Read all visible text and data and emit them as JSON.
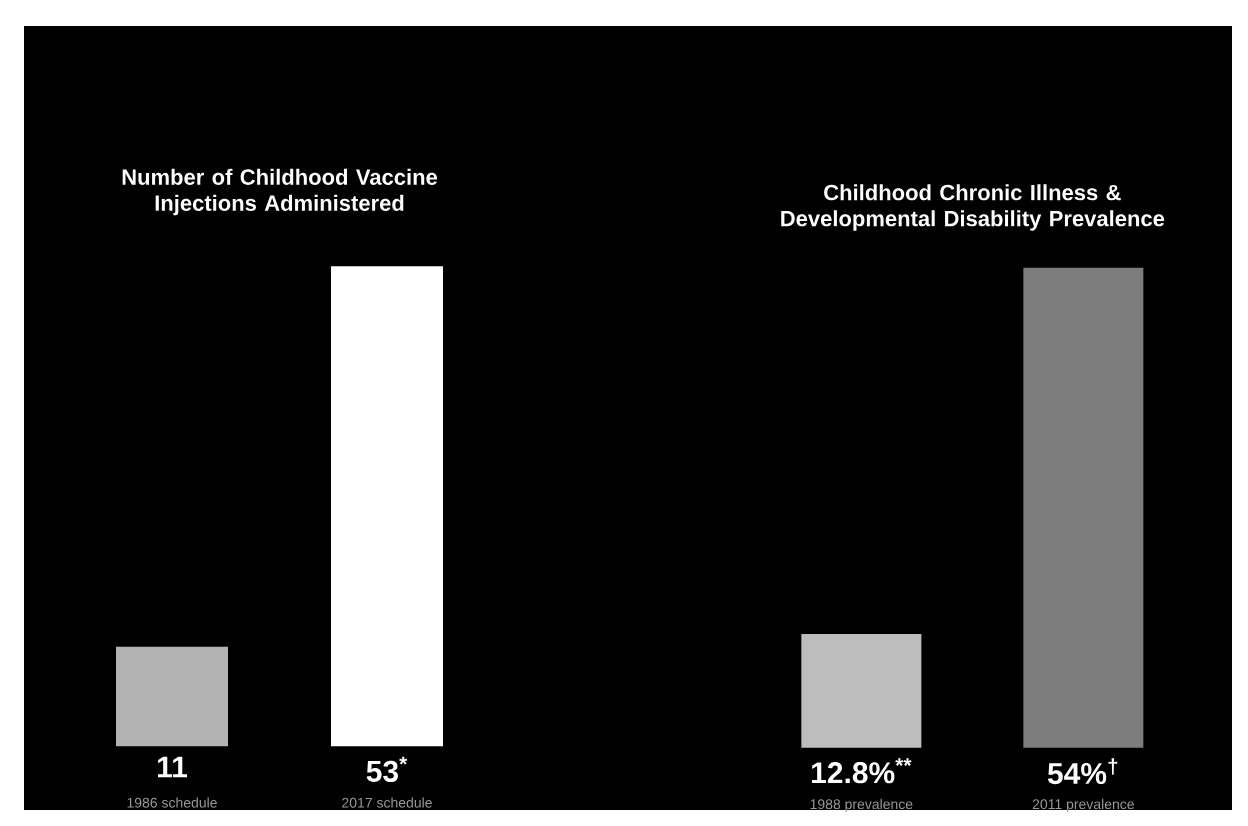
{
  "chart_data": [
    {
      "type": "bar",
      "title": "Number of Childhood Vaccine Injections Administered",
      "categories": [
        "1986 schedule",
        "2017 schedule"
      ],
      "values": [
        11,
        53
      ],
      "colors": [
        "#b3b3b3",
        "#ffffff"
      ],
      "value_labels": [
        "11",
        "53$^{*}$"
      ]
    },
    {
      "type": "bar",
      "title": "Childhood Chronic Illness & Developmental Disability Prevalence",
      "categories": [
        "1988 prevalence",
        "2011 prevalence"
      ],
      "values": [
        12.8,
        54
      ],
      "colors": [
        "#bdbdbd",
        "#7d7d7d"
      ],
      "value_labels": [
        "12.8%$^{**}$",
        "54%$^{†}$"
      ]
    }
  ]
}
